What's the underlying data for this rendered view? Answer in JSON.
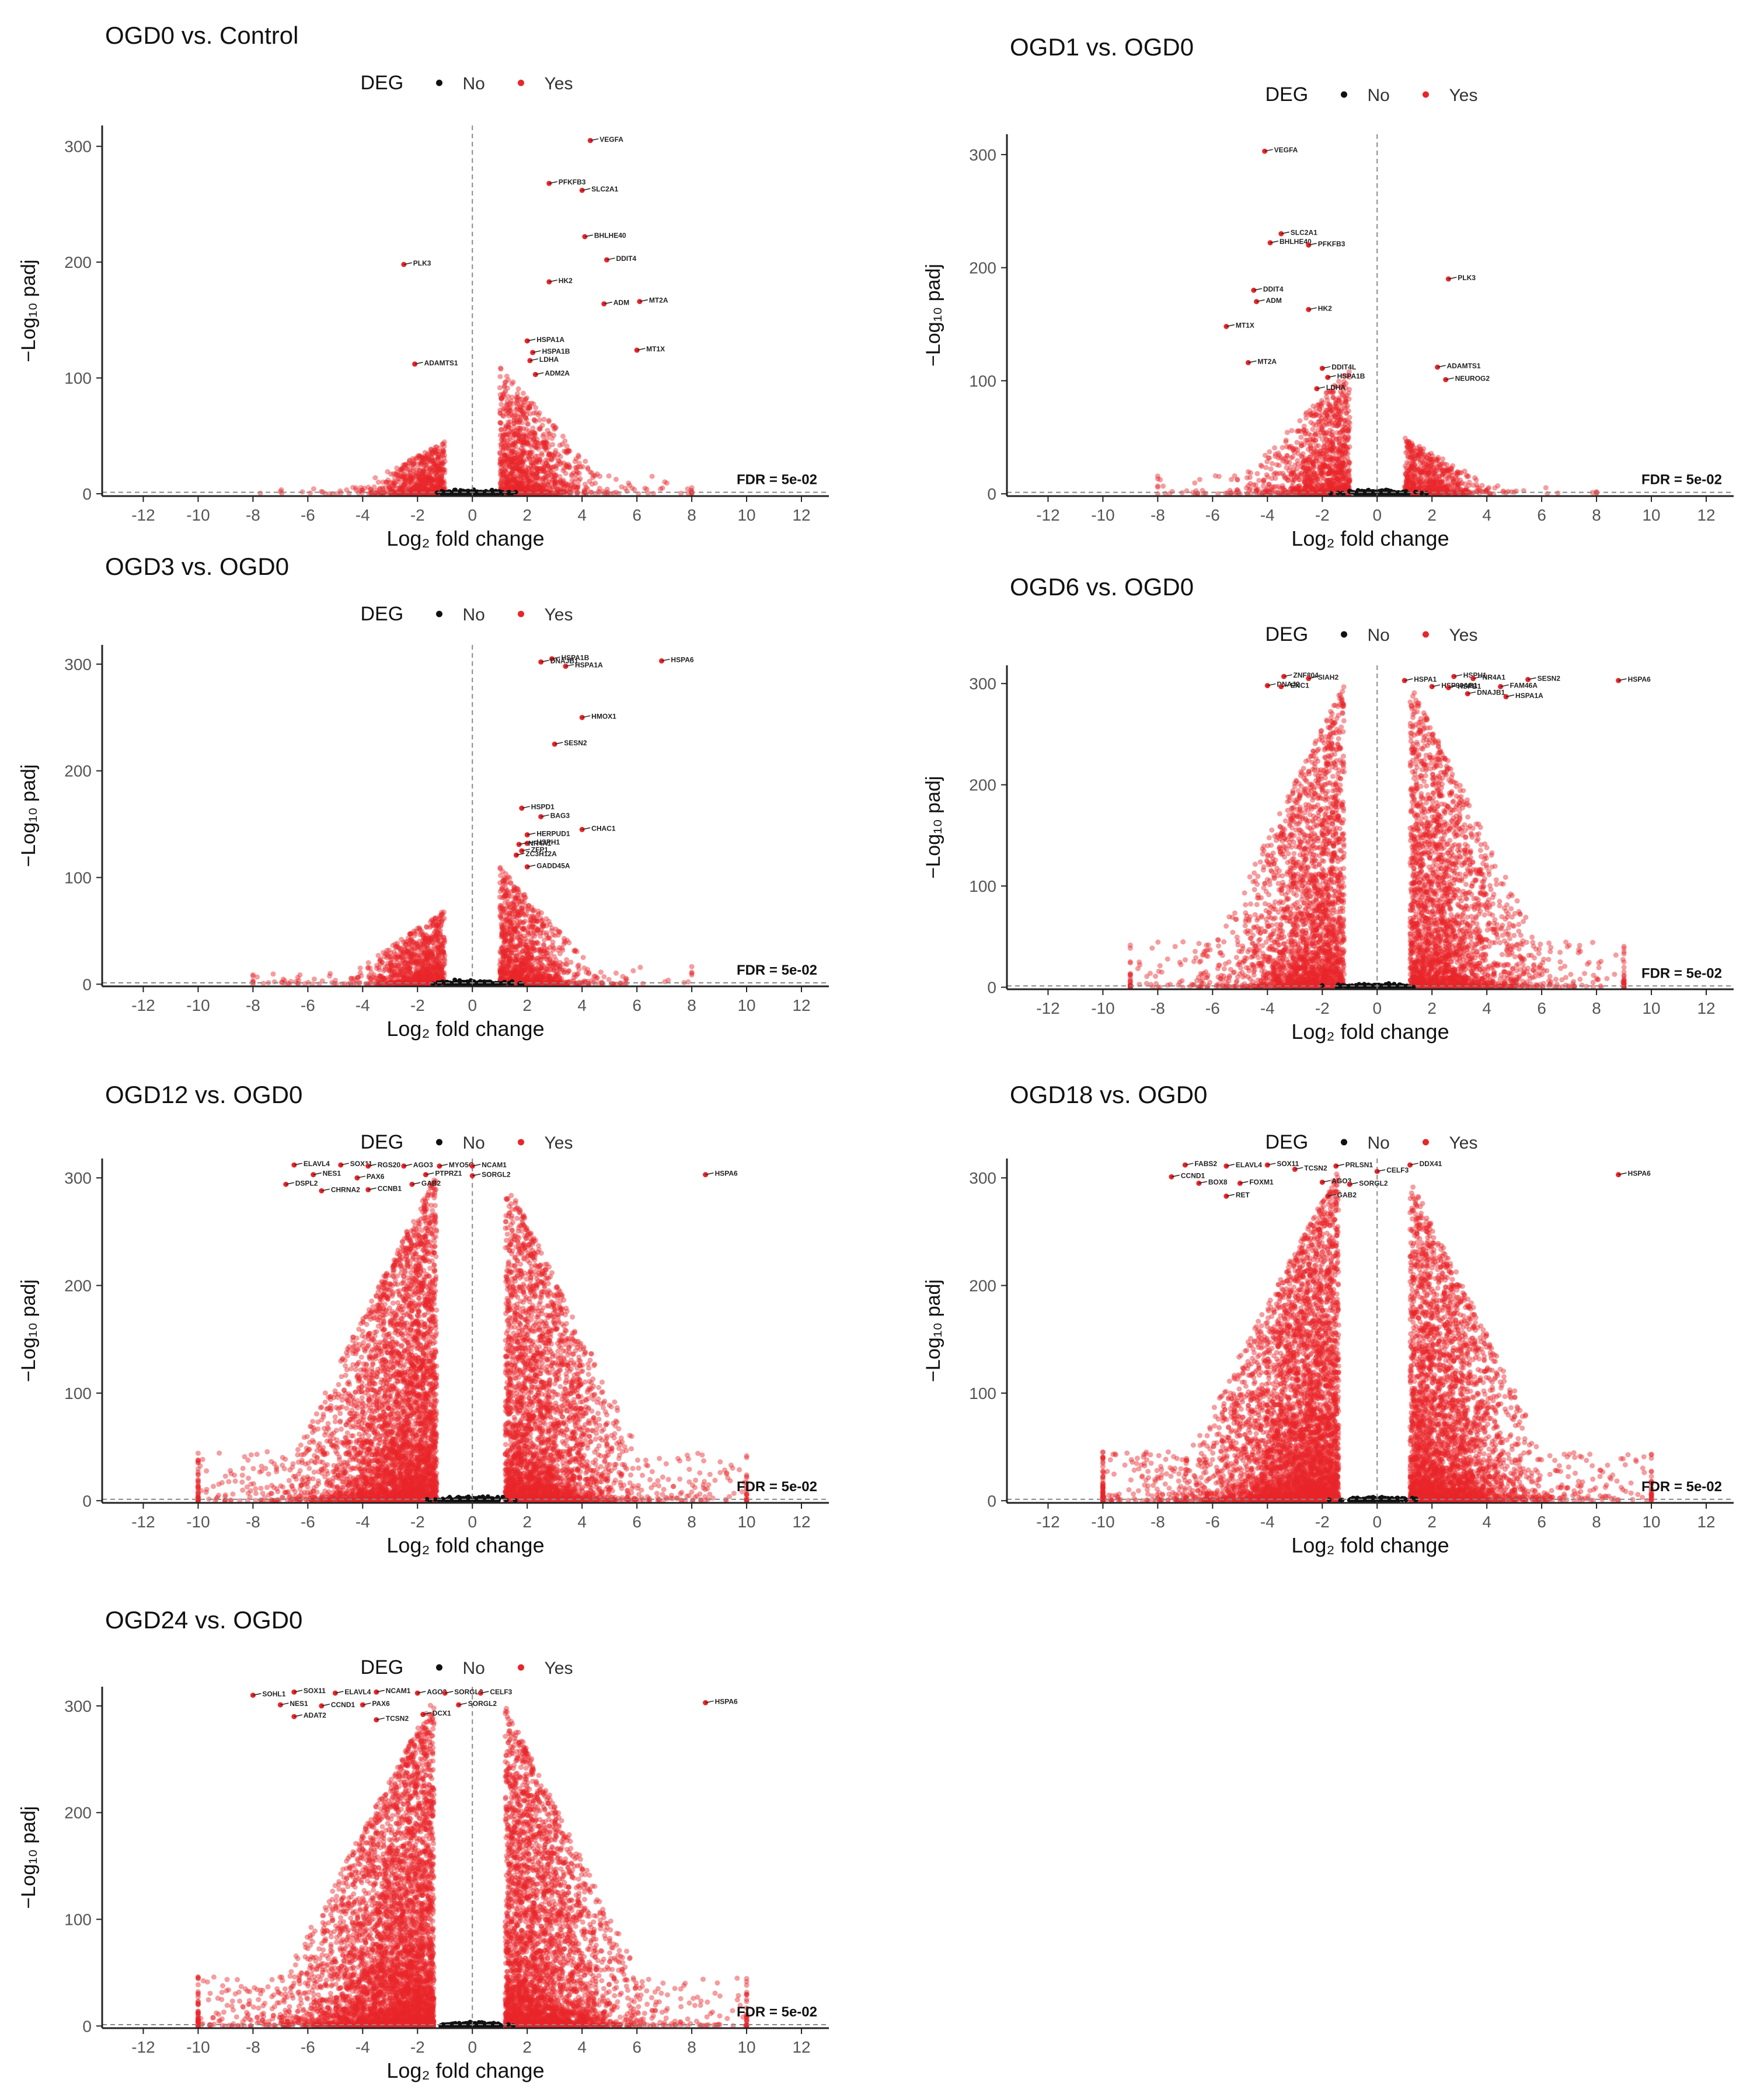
{
  "colors": {
    "deg_no": "#111111",
    "deg_yes": "#e8262a",
    "axis": "#222222",
    "guide": "#888888",
    "tick_label": "#555555"
  },
  "chart_data": [
    {
      "type": "scatter",
      "title": "OGD0 vs. Control",
      "xlabel": "Log₂ fold change",
      "ylabel": "−Log₁₀ padj",
      "xlim": [
        -13.5,
        13
      ],
      "ylim": [
        -2,
        318
      ],
      "x_ticks": [
        -12,
        -10,
        -8,
        -6,
        -4,
        -2,
        0,
        2,
        4,
        6,
        8,
        10,
        12
      ],
      "y_ticks": [
        0,
        100,
        200,
        300
      ],
      "legend": {
        "title": "DEG",
        "entries": [
          "No",
          "Yes"
        ],
        "position": "top"
      },
      "threshold_label": "FDR = 5e-02",
      "cloud": {
        "neg_peak": -1,
        "pos_peak": 1,
        "neg_spread": 1.2,
        "pos_spread": 1.4,
        "neg_top": 45,
        "pos_top": 110,
        "neg_density": 1.0,
        "pos_density": 1.8,
        "tail": 8
      },
      "labeled_genes": [
        {
          "gene": "VEGFA",
          "x": 4.3,
          "y": 305
        },
        {
          "gene": "PFKFB3",
          "x": 2.8,
          "y": 268
        },
        {
          "gene": "SLC2A1",
          "x": 4.0,
          "y": 262
        },
        {
          "gene": "BHLHE40",
          "x": 4.1,
          "y": 222
        },
        {
          "gene": "DDIT4",
          "x": 4.9,
          "y": 202
        },
        {
          "gene": "PLK3",
          "x": -2.5,
          "y": 198
        },
        {
          "gene": "HK2",
          "x": 2.8,
          "y": 183
        },
        {
          "gene": "ADM",
          "x": 4.8,
          "y": 164
        },
        {
          "gene": "MT2A",
          "x": 6.1,
          "y": 166
        },
        {
          "gene": "HSPA1A",
          "x": 2.0,
          "y": 132
        },
        {
          "gene": "HSPA1B",
          "x": 2.2,
          "y": 122
        },
        {
          "gene": "MT1X",
          "x": 6.0,
          "y": 124
        },
        {
          "gene": "ADAMTS1",
          "x": -2.1,
          "y": 112
        },
        {
          "gene": "LDHA",
          "x": 2.1,
          "y": 115
        },
        {
          "gene": "ADM2A",
          "x": 2.3,
          "y": 103
        }
      ]
    },
    {
      "type": "scatter",
      "title": "OGD1 vs. OGD0",
      "xlabel": "Log₂ fold change",
      "ylabel": "−Log₁₀ padj",
      "xlim": [
        -13.5,
        13
      ],
      "ylim": [
        -2,
        318
      ],
      "x_ticks": [
        -12,
        -10,
        -8,
        -6,
        -4,
        -2,
        0,
        2,
        4,
        6,
        8,
        10,
        12
      ],
      "y_ticks": [
        0,
        100,
        200,
        300
      ],
      "legend": {
        "title": "DEG",
        "entries": [
          "No",
          "Yes"
        ],
        "position": "top"
      },
      "threshold_label": "FDR = 5e-02",
      "cloud": {
        "neg_peak": -1,
        "pos_peak": 1,
        "neg_spread": 1.5,
        "pos_spread": 1.2,
        "neg_top": 110,
        "pos_top": 50,
        "neg_density": 1.8,
        "pos_density": 1.0,
        "tail": 8
      },
      "labeled_genes": [
        {
          "gene": "VEGFA",
          "x": -4.1,
          "y": 303
        },
        {
          "gene": "SLC2A1",
          "x": -3.5,
          "y": 230
        },
        {
          "gene": "BHLHE40",
          "x": -3.9,
          "y": 222
        },
        {
          "gene": "PFKFB3",
          "x": -2.5,
          "y": 220
        },
        {
          "gene": "PLK3",
          "x": 2.6,
          "y": 190
        },
        {
          "gene": "DDIT4",
          "x": -4.5,
          "y": 180
        },
        {
          "gene": "ADM",
          "x": -4.4,
          "y": 170
        },
        {
          "gene": "HK2",
          "x": -2.5,
          "y": 163
        },
        {
          "gene": "MT1X",
          "x": -5.5,
          "y": 148
        },
        {
          "gene": "MT2A",
          "x": -4.7,
          "y": 116
        },
        {
          "gene": "DDIT4L",
          "x": -2.0,
          "y": 111
        },
        {
          "gene": "ADAMTS1",
          "x": 2.2,
          "y": 112
        },
        {
          "gene": "HSPA1B",
          "x": -1.8,
          "y": 103
        },
        {
          "gene": "NEUROG2",
          "x": 2.5,
          "y": 101
        },
        {
          "gene": "LDHA",
          "x": -2.2,
          "y": 93
        }
      ]
    },
    {
      "type": "scatter",
      "title": "OGD3 vs. OGD0",
      "xlabel": "Log₂ fold change",
      "ylabel": "−Log₁₀ padj",
      "xlim": [
        -13.5,
        13
      ],
      "ylim": [
        -2,
        318
      ],
      "x_ticks": [
        -12,
        -10,
        -8,
        -6,
        -4,
        -2,
        0,
        2,
        4,
        6,
        8,
        10,
        12
      ],
      "y_ticks": [
        0,
        100,
        200,
        300
      ],
      "legend": {
        "title": "DEG",
        "entries": [
          "No",
          "Yes"
        ],
        "position": "top"
      },
      "threshold_label": "FDR = 5e-02",
      "cloud": {
        "neg_peak": -1,
        "pos_peak": 1,
        "neg_spread": 1.3,
        "pos_spread": 1.3,
        "neg_top": 70,
        "pos_top": 110,
        "neg_density": 1.5,
        "pos_density": 1.8,
        "tail": 8
      },
      "labeled_genes": [
        {
          "gene": "HSPA1B",
          "x": 2.9,
          "y": 305
        },
        {
          "gene": "DNAJB1",
          "x": 2.5,
          "y": 302
        },
        {
          "gene": "HSPA1A",
          "x": 3.4,
          "y": 298
        },
        {
          "gene": "HSPA6",
          "x": 6.9,
          "y": 303
        },
        {
          "gene": "HMOX1",
          "x": 4.0,
          "y": 250
        },
        {
          "gene": "SESN2",
          "x": 3.0,
          "y": 225
        },
        {
          "gene": "HSPD1",
          "x": 1.8,
          "y": 165
        },
        {
          "gene": "BAG3",
          "x": 2.5,
          "y": 157
        },
        {
          "gene": "CHAC1",
          "x": 4.0,
          "y": 145
        },
        {
          "gene": "HERPUD1",
          "x": 2.0,
          "y": 140
        },
        {
          "gene": "HSPH1",
          "x": 2.0,
          "y": 132
        },
        {
          "gene": "NR4A1",
          "x": 1.7,
          "y": 131
        },
        {
          "gene": "ZFP1",
          "x": 1.8,
          "y": 125
        },
        {
          "gene": "ZC3H12A",
          "x": 1.6,
          "y": 121
        },
        {
          "gene": "GADD45A",
          "x": 2.0,
          "y": 110
        }
      ]
    },
    {
      "type": "scatter",
      "title": "OGD6 vs. OGD0",
      "xlabel": "Log₂ fold change",
      "ylabel": "−Log₁₀ padj",
      "xlim": [
        -13.5,
        13
      ],
      "ylim": [
        -2,
        318
      ],
      "x_ticks": [
        -12,
        -10,
        -8,
        -6,
        -4,
        -2,
        0,
        2,
        4,
        6,
        8,
        10,
        12
      ],
      "y_ticks": [
        0,
        100,
        200,
        300
      ],
      "legend": {
        "title": "DEG",
        "entries": [
          "No",
          "Yes"
        ],
        "position": "top"
      },
      "threshold_label": "FDR = 5e-02",
      "cloud": {
        "neg_peak": -1.2,
        "pos_peak": 1.2,
        "neg_spread": 1.8,
        "pos_spread": 1.8,
        "neg_top": 300,
        "pos_top": 300,
        "neg_density": 4.0,
        "pos_density": 4.0,
        "tail": 9
      },
      "labeled_genes": [
        {
          "gene": "ZNF804",
          "x": -3.4,
          "y": 307
        },
        {
          "gene": "SIAH2",
          "x": -2.5,
          "y": 305
        },
        {
          "gene": "DNAJ2",
          "x": -4.0,
          "y": 298
        },
        {
          "gene": "ENC1",
          "x": -3.5,
          "y": 297
        },
        {
          "gene": "HSPA1",
          "x": 1.0,
          "y": 303
        },
        {
          "gene": "HSPH1",
          "x": 2.8,
          "y": 307
        },
        {
          "gene": "NR4A1",
          "x": 3.5,
          "y": 305
        },
        {
          "gene": "SESN2",
          "x": 5.5,
          "y": 304
        },
        {
          "gene": "HSPA6",
          "x": 8.8,
          "y": 303
        },
        {
          "gene": "HSP90AB1",
          "x": 2.0,
          "y": 297
        },
        {
          "gene": "HSPB1",
          "x": 2.6,
          "y": 296
        },
        {
          "gene": "FAM46A",
          "x": 4.5,
          "y": 297
        },
        {
          "gene": "DNAJB1",
          "x": 3.3,
          "y": 290
        },
        {
          "gene": "HSPA1A",
          "x": 4.7,
          "y": 287
        }
      ]
    },
    {
      "type": "scatter",
      "title": "OGD12 vs. OGD0",
      "xlabel": "Log₂ fold change",
      "ylabel": "−Log₁₀ padj",
      "xlim": [
        -13.5,
        13
      ],
      "ylim": [
        -2,
        318
      ],
      "x_ticks": [
        -12,
        -10,
        -8,
        -6,
        -4,
        -2,
        0,
        2,
        4,
        6,
        8,
        10,
        12
      ],
      "y_ticks": [
        0,
        100,
        200,
        300
      ],
      "legend": {
        "title": "DEG",
        "entries": [
          "No",
          "Yes"
        ],
        "position": "top"
      },
      "threshold_label": "FDR = 5e-02",
      "cloud": {
        "neg_peak": -1.3,
        "pos_peak": 1.2,
        "neg_spread": 2.0,
        "pos_spread": 1.9,
        "neg_top": 305,
        "pos_top": 300,
        "neg_density": 6.5,
        "pos_density": 5.0,
        "tail": 10
      },
      "labeled_genes": [
        {
          "gene": "ELAVL4",
          "x": -6.5,
          "y": 312
        },
        {
          "gene": "SOX11",
          "x": -4.8,
          "y": 312
        },
        {
          "gene": "RGS20",
          "x": -3.8,
          "y": 311
        },
        {
          "gene": "AGO3",
          "x": -2.5,
          "y": 311
        },
        {
          "gene": "MYO5C",
          "x": -1.2,
          "y": 311
        },
        {
          "gene": "NCAM1",
          "x": 0.0,
          "y": 311
        },
        {
          "gene": "NES1",
          "x": -5.8,
          "y": 303
        },
        {
          "gene": "PAX6",
          "x": -4.2,
          "y": 300
        },
        {
          "gene": "PTPRZ1",
          "x": -1.7,
          "y": 303
        },
        {
          "gene": "SORGL2",
          "x": 0.0,
          "y": 302
        },
        {
          "gene": "DSPL2",
          "x": -6.8,
          "y": 294
        },
        {
          "gene": "CHRNA2",
          "x": -5.5,
          "y": 288
        },
        {
          "gene": "CCNB1",
          "x": -3.8,
          "y": 289
        },
        {
          "gene": "GAB2",
          "x": -2.2,
          "y": 294
        },
        {
          "gene": "HSPA6",
          "x": 8.5,
          "y": 303
        }
      ]
    },
    {
      "type": "scatter",
      "title": "OGD18 vs. OGD0",
      "xlabel": "Log₂ fold change",
      "ylabel": "−Log₁₀ padj",
      "xlim": [
        -13.5,
        13
      ],
      "ylim": [
        -2,
        318
      ],
      "x_ticks": [
        -12,
        -10,
        -8,
        -6,
        -4,
        -2,
        0,
        2,
        4,
        6,
        8,
        10,
        12
      ],
      "y_ticks": [
        0,
        100,
        200,
        300
      ],
      "legend": {
        "title": "DEG",
        "entries": [
          "No",
          "Yes"
        ],
        "position": "top"
      },
      "threshold_label": "FDR = 5e-02",
      "cloud": {
        "neg_peak": -1.4,
        "pos_peak": 1.2,
        "neg_spread": 2.1,
        "pos_spread": 1.9,
        "neg_top": 308,
        "pos_top": 300,
        "neg_density": 7.5,
        "pos_density": 5.5,
        "tail": 10
      },
      "labeled_genes": [
        {
          "gene": "FABS2",
          "x": -7.0,
          "y": 312
        },
        {
          "gene": "ELAVL4",
          "x": -5.5,
          "y": 311
        },
        {
          "gene": "SOX11",
          "x": -4.0,
          "y": 312
        },
        {
          "gene": "TCSN2",
          "x": -3.0,
          "y": 308
        },
        {
          "gene": "PRLSN1",
          "x": -1.5,
          "y": 311
        },
        {
          "gene": "DDX41",
          "x": 1.2,
          "y": 312
        },
        {
          "gene": "CCND1",
          "x": -7.5,
          "y": 301
        },
        {
          "gene": "CELF3",
          "x": 0.0,
          "y": 306
        },
        {
          "gene": "BOX8",
          "x": -6.5,
          "y": 295
        },
        {
          "gene": "FOXM1",
          "x": -5.0,
          "y": 295
        },
        {
          "gene": "AGO3",
          "x": -2.0,
          "y": 296
        },
        {
          "gene": "SORGL2",
          "x": -1.0,
          "y": 294
        },
        {
          "gene": "RET",
          "x": -5.5,
          "y": 283
        },
        {
          "gene": "GAB2",
          "x": -1.8,
          "y": 283
        },
        {
          "gene": "HSPA6",
          "x": 8.8,
          "y": 303
        }
      ]
    },
    {
      "type": "scatter",
      "title": "OGD24 vs. OGD0",
      "xlabel": "Log₂ fold change",
      "ylabel": "−Log₁₀ padj",
      "xlim": [
        -13.5,
        13
      ],
      "ylim": [
        -2,
        318
      ],
      "x_ticks": [
        -12,
        -10,
        -8,
        -6,
        -4,
        -2,
        0,
        2,
        4,
        6,
        8,
        10,
        12
      ],
      "y_ticks": [
        0,
        100,
        200,
        300
      ],
      "legend": {
        "title": "DEG",
        "entries": [
          "No",
          "Yes"
        ],
        "position": "top"
      },
      "threshold_label": "FDR = 5e-02",
      "cloud": {
        "neg_peak": -1.4,
        "pos_peak": 1.2,
        "neg_spread": 2.1,
        "pos_spread": 1.9,
        "neg_top": 308,
        "pos_top": 300,
        "neg_density": 7.5,
        "pos_density": 5.5,
        "tail": 10
      },
      "labeled_genes": [
        {
          "gene": "SOX11",
          "x": -6.5,
          "y": 313
        },
        {
          "gene": "ELAVL4",
          "x": -5.0,
          "y": 312
        },
        {
          "gene": "NCAM1",
          "x": -3.5,
          "y": 313
        },
        {
          "gene": "AGO3",
          "x": -2.0,
          "y": 312
        },
        {
          "gene": "SORGL2",
          "x": -1.0,
          "y": 312
        },
        {
          "gene": "CELF3",
          "x": 0.3,
          "y": 312
        },
        {
          "gene": "SOHL1",
          "x": -8.0,
          "y": 310
        },
        {
          "gene": "NES1",
          "x": -7.0,
          "y": 301
        },
        {
          "gene": "CCND1",
          "x": -5.5,
          "y": 300
        },
        {
          "gene": "PAX6",
          "x": -4.0,
          "y": 301
        },
        {
          "gene": "SORGL2",
          "x": -0.5,
          "y": 301
        },
        {
          "gene": "HSPA6",
          "x": 8.5,
          "y": 303
        },
        {
          "gene": "ADAT2",
          "x": -6.5,
          "y": 290
        },
        {
          "gene": "TCSN2",
          "x": -3.5,
          "y": 287
        },
        {
          "gene": "DCX1",
          "x": -1.8,
          "y": 292
        }
      ]
    }
  ]
}
